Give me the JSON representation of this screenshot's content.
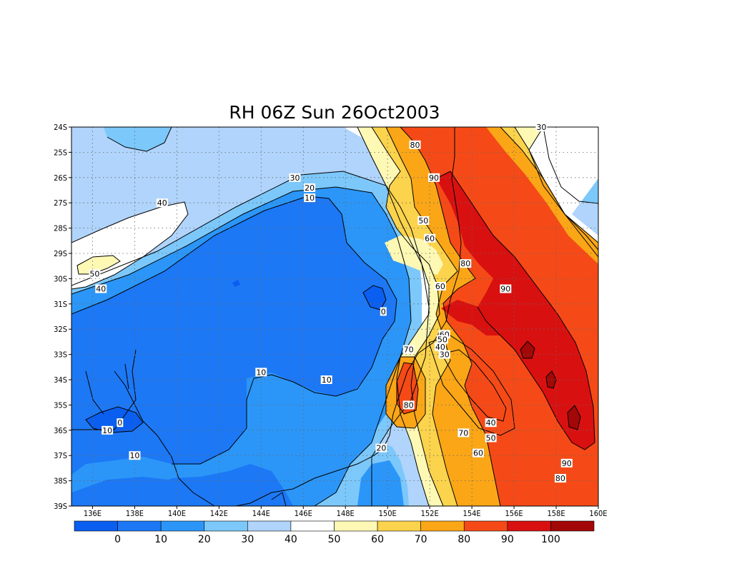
{
  "title": "RH 06Z Sun 26Oct2003",
  "lat_labels": [
    "24S",
    "25S",
    "26S",
    "27S",
    "28S",
    "29S",
    "30S",
    "31S",
    "32S",
    "33S",
    "34S",
    "35S",
    "36S",
    "37S",
    "38S",
    "39S"
  ],
  "lon_labels": [
    "136E",
    "138E",
    "140E",
    "142E",
    "144E",
    "146E",
    "148E",
    "150E",
    "152E",
    "154E",
    "156E",
    "158E",
    "160E"
  ],
  "colorbar": {
    "colors": [
      "#0a5ff0",
      "#1c78f5",
      "#2b96f8",
      "#7cc8fb",
      "#b0d4fb",
      "#ffffff",
      "#fdf8b4",
      "#fbd34c",
      "#fba617",
      "#f54a17",
      "#d91010",
      "#a30808"
    ],
    "labels": [
      "0",
      "10",
      "20",
      "30",
      "40",
      "50",
      "60",
      "70",
      "80",
      "90",
      "100"
    ]
  },
  "contour_labels": [
    {
      "text": "10",
      "lon": 136.7,
      "lat": -36.0
    },
    {
      "text": "0",
      "lon": 137.3,
      "lat": -35.7
    },
    {
      "text": "10",
      "lon": 138.0,
      "lat": -37.0
    },
    {
      "text": "10",
      "lon": 144.0,
      "lat": -33.7
    },
    {
      "text": "10",
      "lon": 147.1,
      "lat": -34.0
    },
    {
      "text": "0",
      "lon": 149.8,
      "lat": -31.3
    },
    {
      "text": "20",
      "lon": 149.7,
      "lat": -36.7
    },
    {
      "text": "50",
      "lon": 136.1,
      "lat": -29.8
    },
    {
      "text": "40",
      "lon": 136.4,
      "lat": -30.4
    },
    {
      "text": "40",
      "lon": 139.3,
      "lat": -27.0
    },
    {
      "text": "30",
      "lon": 145.6,
      "lat": -26.0
    },
    {
      "text": "20",
      "lon": 146.3,
      "lat": -26.4
    },
    {
      "text": "10",
      "lon": 146.3,
      "lat": -26.8
    },
    {
      "text": "80",
      "lon": 151.3,
      "lat": -24.7
    },
    {
      "text": "90",
      "lon": 152.2,
      "lat": -26.0
    },
    {
      "text": "50",
      "lon": 151.7,
      "lat": -27.7
    },
    {
      "text": "60",
      "lon": 152.0,
      "lat": -28.4
    },
    {
      "text": "80",
      "lon": 153.7,
      "lat": -29.4
    },
    {
      "text": "60",
      "lon": 152.5,
      "lat": -30.3
    },
    {
      "text": "90",
      "lon": 155.6,
      "lat": -30.4
    },
    {
      "text": "60",
      "lon": 152.7,
      "lat": -32.2
    },
    {
      "text": "50",
      "lon": 152.6,
      "lat": -32.4
    },
    {
      "text": "40",
      "lon": 152.5,
      "lat": -32.7
    },
    {
      "text": "30",
      "lon": 152.7,
      "lat": -33.0
    },
    {
      "text": "70",
      "lon": 151.0,
      "lat": -32.8
    },
    {
      "text": "80",
      "lon": 151.0,
      "lat": -35.0
    },
    {
      "text": "40",
      "lon": 154.9,
      "lat": -35.7
    },
    {
      "text": "50",
      "lon": 154.9,
      "lat": -36.3
    },
    {
      "text": "70",
      "lon": 153.6,
      "lat": -36.1
    },
    {
      "text": "60",
      "lon": 154.3,
      "lat": -36.9
    },
    {
      "text": "90",
      "lon": 158.5,
      "lat": -37.3
    },
    {
      "text": "80",
      "lon": 158.2,
      "lat": -37.9
    },
    {
      "text": "30",
      "lon": 157.3,
      "lat": -24.0
    }
  ]
}
